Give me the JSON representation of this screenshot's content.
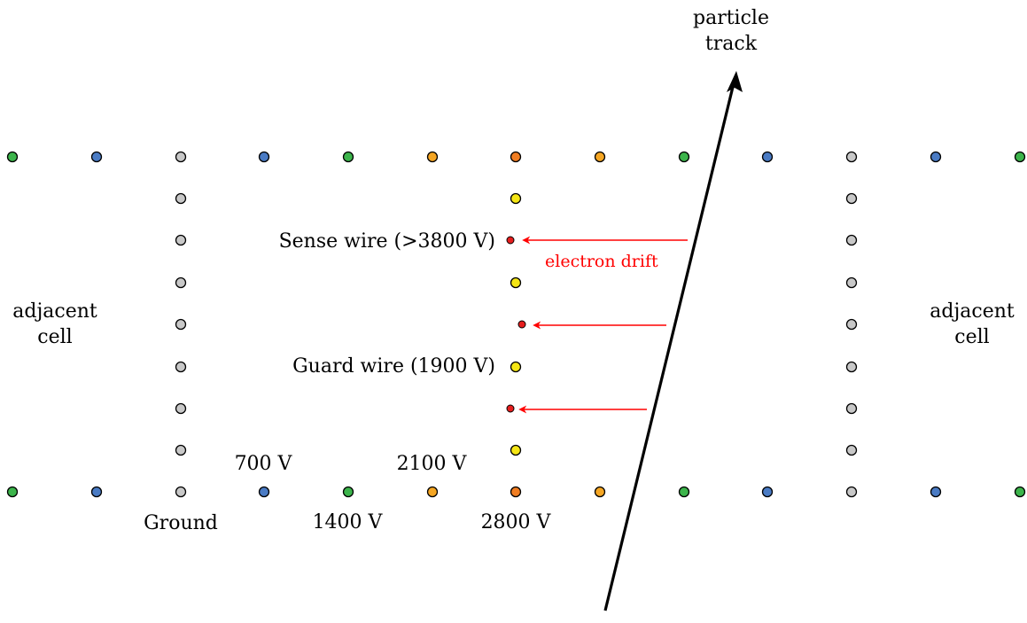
{
  "labels": {
    "particle_track": [
      "particle",
      "track"
    ],
    "adjacent_cell_left": [
      "adjacent",
      "cell"
    ],
    "adjacent_cell_right": [
      "adjacent",
      "cell"
    ],
    "sense_wire": "Sense wire (>3800 V)",
    "guard_wire": "Guard wire (1900 V)",
    "electron_drift": "electron drift",
    "v700": "700 V",
    "v2100": "2100 V",
    "ground": "Ground",
    "v1400": "1400 V",
    "v2800": "2800 V"
  },
  "colors": {
    "ground": "#c8c8c8",
    "v700": "#4a7bc4",
    "v1400": "#3cb44b",
    "v2100": "#f5a623",
    "v2800": "#f07d22",
    "guard": "#f5e615",
    "sense": "#e61e1e",
    "drift_arrow": "#ff0000",
    "track": "#000000"
  },
  "top_row_wires": [
    "v1400",
    "v700",
    "ground",
    "v700",
    "v1400",
    "v2100",
    "v2800",
    "v2100",
    "v1400",
    "v700",
    "ground",
    "v700",
    "v1400"
  ],
  "bottom_row_wires": [
    "v1400",
    "v700",
    "ground",
    "v700",
    "v1400",
    "v2100",
    "v2800",
    "v2100",
    "v1400",
    "v700",
    "ground",
    "v700",
    "v1400"
  ],
  "left_column_wires": [
    "ground",
    "ground",
    "ground",
    "ground",
    "ground",
    "ground",
    "ground"
  ],
  "right_column_wires": [
    "ground",
    "ground",
    "ground",
    "ground",
    "ground",
    "ground",
    "ground"
  ],
  "center_column_wires": [
    "guard",
    "sense",
    "guard",
    "sense",
    "guard",
    "sense",
    "guard"
  ]
}
